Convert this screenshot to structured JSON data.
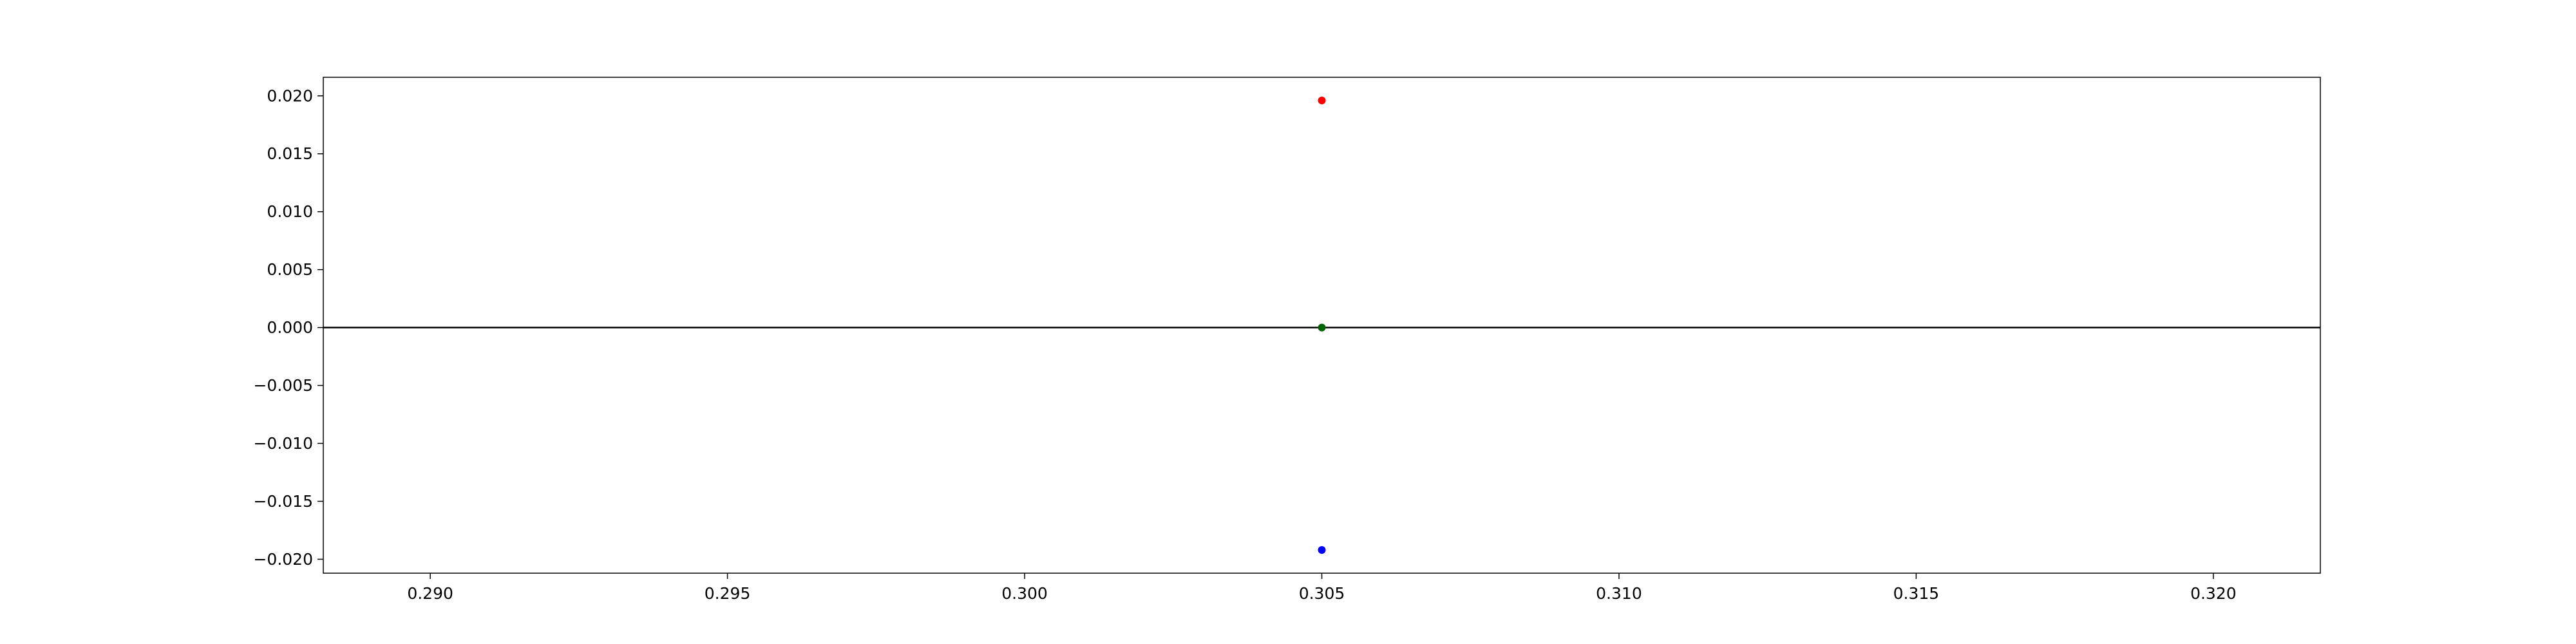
{
  "chart_data": {
    "type": "scatter",
    "title": "",
    "xlabel": "",
    "ylabel": "",
    "xlim": [
      0.2882,
      0.3218
    ],
    "ylim": [
      -0.0212,
      0.0216
    ],
    "grid": false,
    "x_ticks": [
      {
        "value": 0.29,
        "label": "0.290"
      },
      {
        "value": 0.295,
        "label": "0.295"
      },
      {
        "value": 0.3,
        "label": "0.300"
      },
      {
        "value": 0.305,
        "label": "0.305"
      },
      {
        "value": 0.31,
        "label": "0.310"
      },
      {
        "value": 0.315,
        "label": "0.315"
      },
      {
        "value": 0.32,
        "label": "0.320"
      }
    ],
    "y_ticks": [
      {
        "value": 0.02,
        "label": "0.020"
      },
      {
        "value": 0.015,
        "label": "0.015"
      },
      {
        "value": 0.01,
        "label": "0.010"
      },
      {
        "value": 0.005,
        "label": "0.005"
      },
      {
        "value": 0.0,
        "label": "0.000"
      },
      {
        "value": -0.005,
        "label": "−0.005"
      },
      {
        "value": -0.01,
        "label": "−0.010"
      },
      {
        "value": -0.015,
        "label": "−0.015"
      },
      {
        "value": -0.02,
        "label": "−0.020"
      }
    ],
    "reference_line": {
      "y": 0.0,
      "color": "#000000"
    },
    "points": [
      {
        "x": 0.305,
        "y": 0.0196,
        "color": "#ff0000"
      },
      {
        "x": 0.305,
        "y": 0.0,
        "color": "#006400"
      },
      {
        "x": 0.305,
        "y": -0.0192,
        "color": "#0000ff"
      }
    ]
  }
}
